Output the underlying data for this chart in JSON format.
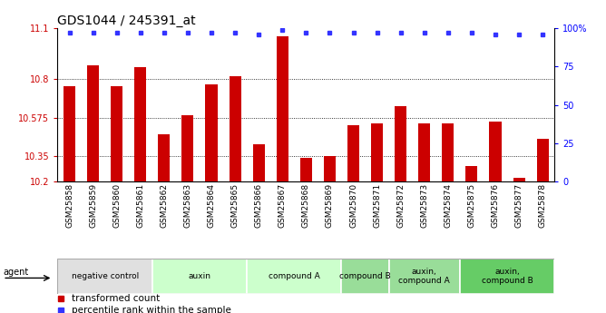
{
  "title": "GDS1044 / 245391_at",
  "samples": [
    "GSM25858",
    "GSM25859",
    "GSM25860",
    "GSM25861",
    "GSM25862",
    "GSM25863",
    "GSM25864",
    "GSM25865",
    "GSM25866",
    "GSM25867",
    "GSM25868",
    "GSM25869",
    "GSM25870",
    "GSM25871",
    "GSM25872",
    "GSM25873",
    "GSM25874",
    "GSM25875",
    "GSM25876",
    "GSM25877",
    "GSM25878"
  ],
  "bar_values": [
    10.76,
    10.88,
    10.76,
    10.87,
    10.48,
    10.59,
    10.77,
    10.82,
    10.42,
    11.05,
    10.34,
    10.35,
    10.53,
    10.54,
    10.64,
    10.54,
    10.54,
    10.29,
    10.55,
    10.22,
    10.45
  ],
  "percentile_values": [
    97,
    97,
    97,
    97,
    97,
    97,
    97,
    97,
    96,
    99,
    97,
    97,
    97,
    97,
    97,
    97,
    97,
    97,
    96,
    96,
    96
  ],
  "ymin": 10.2,
  "ymax": 11.1,
  "yticks": [
    10.2,
    10.35,
    10.575,
    10.8,
    11.1
  ],
  "ytick_labels": [
    "10.2",
    "10.35",
    "10.575",
    "10.8",
    "11.1"
  ],
  "right_yticks": [
    0,
    25,
    50,
    75,
    100
  ],
  "right_ytick_labels": [
    "0",
    "25",
    "50",
    "75",
    "100%"
  ],
  "bar_color": "#cc0000",
  "dot_color": "#3333ff",
  "agent_groups": [
    {
      "label": "negative control",
      "start": 0,
      "end": 3,
      "color": "#e0e0e0"
    },
    {
      "label": "auxin",
      "start": 4,
      "end": 7,
      "color": "#ccffcc"
    },
    {
      "label": "compound A",
      "start": 8,
      "end": 11,
      "color": "#ccffcc"
    },
    {
      "label": "compound B",
      "start": 12,
      "end": 13,
      "color": "#99dd99"
    },
    {
      "label": "auxin,\ncompound A",
      "start": 14,
      "end": 16,
      "color": "#99dd99"
    },
    {
      "label": "auxin,\ncompound B",
      "start": 17,
      "end": 20,
      "color": "#66cc66"
    }
  ],
  "legend_red_label": "transformed count",
  "legend_blue_label": "percentile rank within the sample",
  "title_fontsize": 10,
  "tick_fontsize": 7,
  "xtick_fontsize": 6.5
}
